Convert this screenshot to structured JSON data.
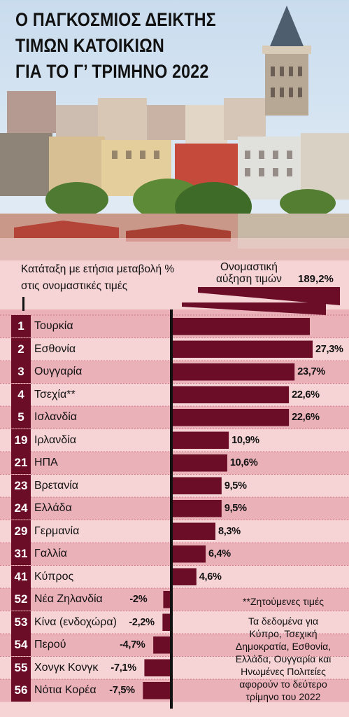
{
  "title_lines": [
    "Ο ΠΑΓΚΟΣΜΙΟΣ ΔΕΙΚΤΗΣ",
    "ΤΙΜΩΝ ΚΑΤΟΙΚΙΩΝ",
    "ΓΙΑ ΤΟ Γ’ ΤΡΙΜΗΝΟ 2022"
  ],
  "ranking_subtitle_lines": [
    "Κατάταξη με ετήσια μεταβολή %",
    "στις ονομαστικές τιμές"
  ],
  "growth_label_lines": [
    "Ονομαστική",
    "αύξηση τιμών"
  ],
  "footnote": "**Ζητούμενες τιμές",
  "note": "Τα δεδομένα για Κύπρο, Τσεχική Δημοκρατία, Εσθονία, Ελλάδα, Ουγγαρία και Ηνωμένες Πολιτείες αφορούν το δεύτερο τρίμηνο του 2022",
  "colors": {
    "bar": "#6b0d27",
    "band_dark": "#ebb1b9",
    "band_light": "#f6d3d5"
  },
  "chart_data": {
    "type": "bar",
    "orientation": "horizontal",
    "rows": [
      {
        "rank": "1",
        "country": "Τουρκία",
        "value": 189.2,
        "label": "189,2%"
      },
      {
        "rank": "2",
        "country": "Εσθονία",
        "value": 27.3,
        "label": "27,3%"
      },
      {
        "rank": "3",
        "country": "Ουγγαρία",
        "value": 23.7,
        "label": "23,7%"
      },
      {
        "rank": "4",
        "country": "Τσεχία**",
        "value": 22.6,
        "label": "22,6%"
      },
      {
        "rank": "5",
        "country": "Ισλανδία",
        "value": 22.6,
        "label": "22,6%"
      },
      {
        "rank": "19",
        "country": "Ιρλανδία",
        "value": 10.9,
        "label": "10,9%"
      },
      {
        "rank": "21",
        "country": "ΗΠΑ",
        "value": 10.6,
        "label": "10,6%"
      },
      {
        "rank": "23",
        "country": "Βρετανία",
        "value": 9.5,
        "label": "9,5%"
      },
      {
        "rank": "24",
        "country": "Ελλάδα",
        "value": 9.5,
        "label": "9,5%"
      },
      {
        "rank": "29",
        "country": "Γερμανία",
        "value": 8.3,
        "label": "8,3%"
      },
      {
        "rank": "31",
        "country": "Γαλλία",
        "value": 6.4,
        "label": "6,4%"
      },
      {
        "rank": "41",
        "country": "Κύπρος",
        "value": 4.6,
        "label": "4,6%"
      },
      {
        "rank": "52",
        "country": "Νέα Ζηλανδία",
        "value": -2,
        "label": "-2%"
      },
      {
        "rank": "53",
        "country": "Κίνα (ενδοχώρα)",
        "value": -2.2,
        "label": "-2,2%"
      },
      {
        "rank": "54",
        "country": "Περού",
        "value": -4.7,
        "label": "-4,7%"
      },
      {
        "rank": "55",
        "country": "Χονγκ Κονγκ",
        "value": -7.1,
        "label": "-7,1%"
      },
      {
        "rank": "56",
        "country": "Νότια Κορέα",
        "value": -7.5,
        "label": "-7,5%"
      }
    ]
  }
}
